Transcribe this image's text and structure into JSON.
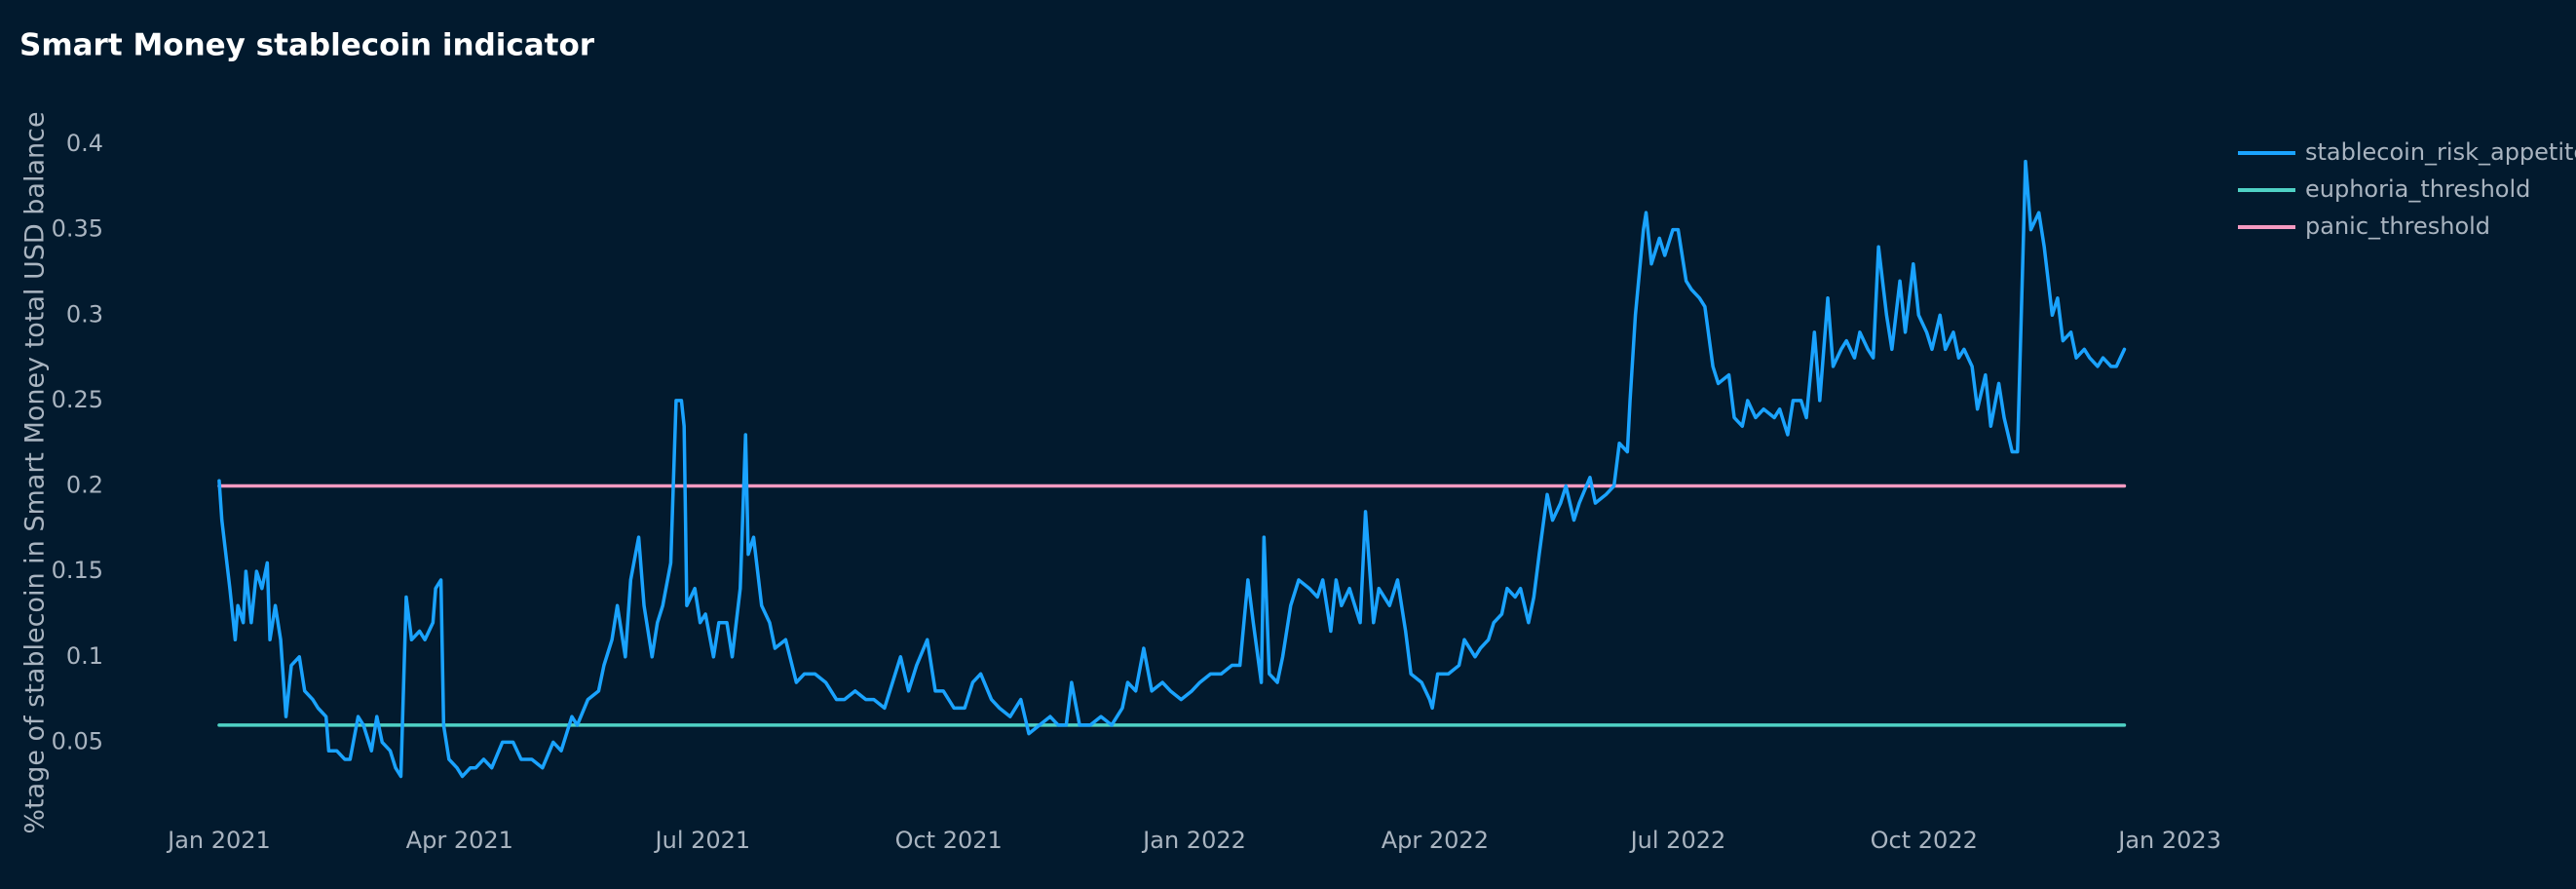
{
  "chart_data": {
    "type": "line",
    "title": "Smart Money stablecoin indicator",
    "y_label": "%tage of stablecoin in Smart Money total USD balance",
    "xlim": [
      "2020-11-23",
      "2023-01-13"
    ],
    "xticks": [
      {
        "value": "2021-01-01",
        "label": "Jan 2021"
      },
      {
        "value": "2021-04-01",
        "label": "Apr 2021"
      },
      {
        "value": "2021-07-01",
        "label": "Jul 2021"
      },
      {
        "value": "2021-10-01",
        "label": "Oct 2021"
      },
      {
        "value": "2022-01-01",
        "label": "Jan 2022"
      },
      {
        "value": "2022-04-01",
        "label": "Apr 2022"
      },
      {
        "value": "2022-07-01",
        "label": "Jul 2022"
      },
      {
        "value": "2022-10-01",
        "label": "Oct 2022"
      },
      {
        "value": "2023-01-01",
        "label": "Jan 2023"
      }
    ],
    "ylim": [
      0.02,
      0.42
    ],
    "yticks": [
      0.05,
      0.1,
      0.15,
      0.2,
      0.25,
      0.3,
      0.35,
      0.4
    ],
    "grid": false,
    "legend": "top-right",
    "series": [
      {
        "name": "stablecoin_risk_appetite",
        "color": "#1aa3ff",
        "x": [
          "2021-01-01",
          "2021-01-02",
          "2021-01-05",
          "2021-01-07",
          "2021-01-08",
          "2021-01-10",
          "2021-01-11",
          "2021-01-13",
          "2021-01-15",
          "2021-01-17",
          "2021-01-19",
          "2021-01-20",
          "2021-01-22",
          "2021-01-24",
          "2021-01-26",
          "2021-01-28",
          "2021-01-31",
          "2021-02-02",
          "2021-02-05",
          "2021-02-07",
          "2021-02-10",
          "2021-02-11",
          "2021-02-14",
          "2021-02-17",
          "2021-02-19",
          "2021-02-22",
          "2021-02-24",
          "2021-02-27",
          "2021-03-01",
          "2021-03-03",
          "2021-03-06",
          "2021-03-08",
          "2021-03-10",
          "2021-03-12",
          "2021-03-14",
          "2021-03-17",
          "2021-03-19",
          "2021-03-22",
          "2021-03-23",
          "2021-03-25",
          "2021-03-26",
          "2021-03-28",
          "2021-03-31",
          "2021-04-02",
          "2021-04-05",
          "2021-04-07",
          "2021-04-10",
          "2021-04-13",
          "2021-04-17",
          "2021-04-21",
          "2021-04-24",
          "2021-04-28",
          "2021-05-02",
          "2021-05-06",
          "2021-05-09",
          "2021-05-13",
          "2021-05-15",
          "2021-05-19",
          "2021-05-23",
          "2021-05-25",
          "2021-05-28",
          "2021-05-30",
          "2021-06-02",
          "2021-06-04",
          "2021-06-07",
          "2021-06-09",
          "2021-06-12",
          "2021-06-14",
          "2021-06-16",
          "2021-06-19",
          "2021-06-21",
          "2021-06-23",
          "2021-06-24",
          "2021-06-25",
          "2021-06-28",
          "2021-06-30",
          "2021-07-02",
          "2021-07-05",
          "2021-07-07",
          "2021-07-10",
          "2021-07-12",
          "2021-07-15",
          "2021-07-17",
          "2021-07-18",
          "2021-07-20",
          "2021-07-23",
          "2021-07-26",
          "2021-07-28",
          "2021-08-01",
          "2021-08-05",
          "2021-08-08",
          "2021-08-12",
          "2021-08-16",
          "2021-08-20",
          "2021-08-23",
          "2021-08-27",
          "2021-08-31",
          "2021-09-03",
          "2021-09-07",
          "2021-09-11",
          "2021-09-13",
          "2021-09-16",
          "2021-09-19",
          "2021-09-23",
          "2021-09-26",
          "2021-09-29",
          "2021-10-03",
          "2021-10-07",
          "2021-10-10",
          "2021-10-13",
          "2021-10-17",
          "2021-10-20",
          "2021-10-24",
          "2021-10-28",
          "2021-10-31",
          "2021-11-04",
          "2021-11-08",
          "2021-11-11",
          "2021-11-14",
          "2021-11-16",
          "2021-11-19",
          "2021-11-23",
          "2021-11-27",
          "2021-12-01",
          "2021-12-05",
          "2021-12-07",
          "2021-12-10",
          "2021-12-13",
          "2021-12-16",
          "2021-12-20",
          "2021-12-23",
          "2021-12-27",
          "2021-12-31",
          "2022-01-03",
          "2022-01-07",
          "2022-01-11",
          "2022-01-15",
          "2022-01-18",
          "2022-01-21",
          "2022-01-23",
          "2022-01-26",
          "2022-01-27",
          "2022-01-29",
          "2022-02-01",
          "2022-02-03",
          "2022-02-06",
          "2022-02-09",
          "2022-02-13",
          "2022-02-16",
          "2022-02-18",
          "2022-02-21",
          "2022-02-23",
          "2022-02-25",
          "2022-02-28",
          "2022-03-04",
          "2022-03-06",
          "2022-03-09",
          "2022-03-11",
          "2022-03-15",
          "2022-03-18",
          "2022-03-21",
          "2022-03-23",
          "2022-03-27",
          "2022-03-30",
          "2022-03-31",
          "2022-04-02",
          "2022-04-06",
          "2022-04-10",
          "2022-04-12",
          "2022-04-16",
          "2022-04-18",
          "2022-04-21",
          "2022-04-23",
          "2022-04-26",
          "2022-04-28",
          "2022-05-01",
          "2022-05-03",
          "2022-05-06",
          "2022-05-08",
          "2022-05-10",
          "2022-05-13",
          "2022-05-15",
          "2022-05-18",
          "2022-05-20",
          "2022-05-23",
          "2022-05-25",
          "2022-05-29",
          "2022-05-31",
          "2022-06-04",
          "2022-06-07",
          "2022-06-09",
          "2022-06-12",
          "2022-06-13",
          "2022-06-15",
          "2022-06-18",
          "2022-06-19",
          "2022-06-21",
          "2022-06-24",
          "2022-06-26",
          "2022-06-29",
          "2022-07-01",
          "2022-07-04",
          "2022-07-06",
          "2022-07-09",
          "2022-07-11",
          "2022-07-14",
          "2022-07-16",
          "2022-07-20",
          "2022-07-22",
          "2022-07-25",
          "2022-07-27",
          "2022-07-30",
          "2022-08-02",
          "2022-08-06",
          "2022-08-08",
          "2022-08-11",
          "2022-08-13",
          "2022-08-16",
          "2022-08-18",
          "2022-08-21",
          "2022-08-23",
          "2022-08-26",
          "2022-08-28",
          "2022-08-31",
          "2022-09-02",
          "2022-09-05",
          "2022-09-07",
          "2022-09-10",
          "2022-09-12",
          "2022-09-14",
          "2022-09-17",
          "2022-09-19",
          "2022-09-22",
          "2022-09-24",
          "2022-09-27",
          "2022-09-29",
          "2022-10-02",
          "2022-10-04",
          "2022-10-07",
          "2022-10-09",
          "2022-10-12",
          "2022-10-14",
          "2022-10-16",
          "2022-10-19",
          "2022-10-21",
          "2022-10-24",
          "2022-10-26",
          "2022-10-29",
          "2022-10-31",
          "2022-11-03",
          "2022-11-05",
          "2022-11-08",
          "2022-11-10",
          "2022-11-13",
          "2022-11-15",
          "2022-11-18",
          "2022-11-20",
          "2022-11-22",
          "2022-11-25",
          "2022-11-27",
          "2022-11-30",
          "2022-12-02",
          "2022-12-05",
          "2022-12-07",
          "2022-12-10",
          "2022-12-12",
          "2022-12-15"
        ],
        "values": [
          0.203,
          0.18,
          0.14,
          0.11,
          0.13,
          0.12,
          0.15,
          0.12,
          0.15,
          0.14,
          0.155,
          0.11,
          0.13,
          0.11,
          0.065,
          0.095,
          0.1,
          0.08,
          0.075,
          0.07,
          0.065,
          0.045,
          0.045,
          0.04,
          0.04,
          0.065,
          0.06,
          0.045,
          0.065,
          0.05,
          0.045,
          0.035,
          0.03,
          0.135,
          0.11,
          0.115,
          0.11,
          0.12,
          0.14,
          0.145,
          0.06,
          0.04,
          0.035,
          0.03,
          0.035,
          0.035,
          0.04,
          0.035,
          0.05,
          0.05,
          0.04,
          0.04,
          0.035,
          0.05,
          0.045,
          0.065,
          0.06,
          0.075,
          0.08,
          0.095,
          0.11,
          0.13,
          0.1,
          0.145,
          0.17,
          0.13,
          0.1,
          0.12,
          0.13,
          0.155,
          0.25,
          0.25,
          0.235,
          0.13,
          0.14,
          0.12,
          0.125,
          0.1,
          0.12,
          0.12,
          0.1,
          0.14,
          0.23,
          0.16,
          0.17,
          0.13,
          0.12,
          0.105,
          0.11,
          0.085,
          0.09,
          0.09,
          0.085,
          0.075,
          0.075,
          0.08,
          0.075,
          0.075,
          0.07,
          0.09,
          0.1,
          0.08,
          0.095,
          0.11,
          0.08,
          0.08,
          0.07,
          0.07,
          0.085,
          0.09,
          0.075,
          0.07,
          0.065,
          0.075,
          0.055,
          0.06,
          0.065,
          0.06,
          0.06,
          0.085,
          0.06,
          0.06,
          0.065,
          0.06,
          0.07,
          0.085,
          0.08,
          0.105,
          0.08,
          0.085,
          0.08,
          0.075,
          0.08,
          0.085,
          0.09,
          0.09,
          0.095,
          0.095,
          0.145,
          0.12,
          0.085,
          0.17,
          0.09,
          0.085,
          0.1,
          0.13,
          0.145,
          0.14,
          0.135,
          0.145,
          0.115,
          0.145,
          0.13,
          0.14,
          0.12,
          0.185,
          0.12,
          0.14,
          0.13,
          0.145,
          0.115,
          0.09,
          0.085,
          0.075,
          0.07,
          0.09,
          0.09,
          0.095,
          0.11,
          0.1,
          0.105,
          0.11,
          0.12,
          0.125,
          0.14,
          0.135,
          0.14,
          0.12,
          0.135,
          0.16,
          0.195,
          0.18,
          0.19,
          0.2,
          0.18,
          0.19,
          0.205,
          0.19,
          0.195,
          0.2,
          0.225,
          0.22,
          0.25,
          0.3,
          0.35,
          0.36,
          0.33,
          0.345,
          0.335,
          0.35,
          0.35,
          0.32,
          0.315,
          0.31,
          0.305,
          0.27,
          0.26,
          0.265,
          0.24,
          0.235,
          0.25,
          0.24,
          0.245,
          0.24,
          0.245,
          0.23,
          0.25,
          0.25,
          0.24,
          0.29,
          0.25,
          0.31,
          0.27,
          0.28,
          0.285,
          0.275,
          0.29,
          0.28,
          0.275,
          0.34,
          0.3,
          0.28,
          0.32,
          0.29,
          0.33,
          0.3,
          0.29,
          0.28,
          0.3,
          0.28,
          0.29,
          0.275,
          0.28,
          0.27,
          0.245,
          0.265,
          0.235,
          0.26,
          0.24,
          0.22,
          0.22,
          0.39,
          0.35,
          0.36,
          0.34,
          0.3,
          0.31,
          0.285,
          0.29,
          0.275,
          0.28,
          0.275,
          0.27,
          0.275,
          0.27,
          0.27,
          0.28
        ]
      },
      {
        "name": "euphoria_threshold",
        "color": "#4fd1c5",
        "x": [
          "2021-01-01",
          "2022-12-15"
        ],
        "values": [
          0.06,
          0.06
        ]
      },
      {
        "name": "panic_threshold",
        "color": "#f49ac1",
        "x": [
          "2021-01-01",
          "2022-12-15"
        ],
        "values": [
          0.2,
          0.2
        ]
      }
    ]
  }
}
